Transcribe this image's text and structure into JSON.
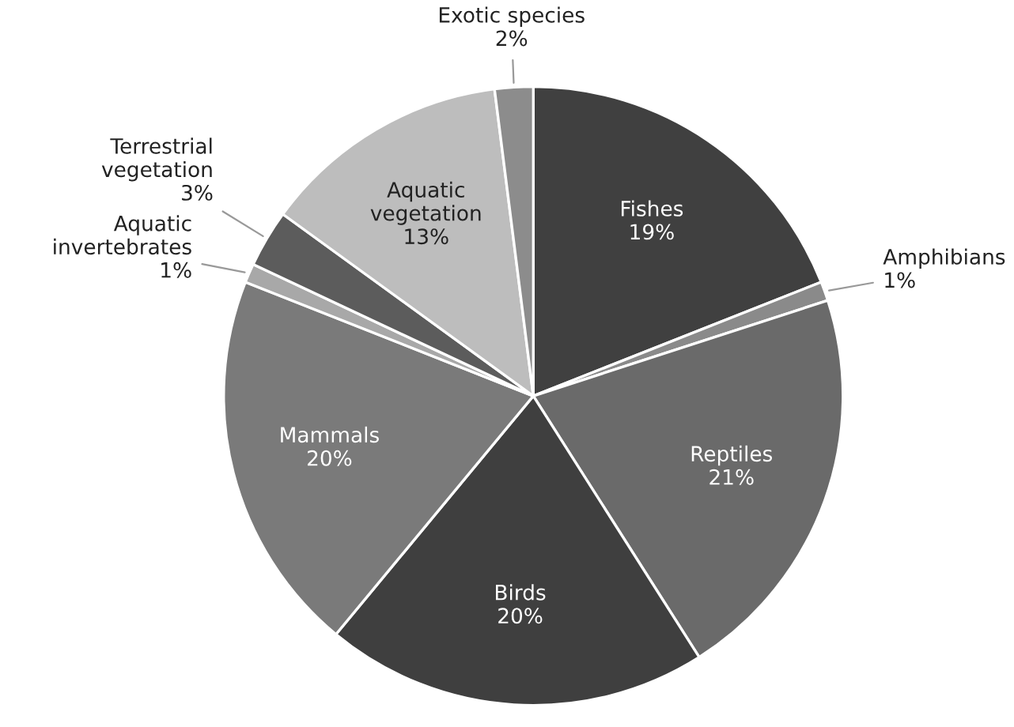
{
  "chart_data": {
    "type": "pie",
    "categories": [
      "Fishes",
      "Amphibians",
      "Reptiles",
      "Birds",
      "Mammals",
      "Aquatic invertebrates",
      "Terrestrial vegetation",
      "Aquatic vegetation",
      "Exotic species"
    ],
    "values": [
      19,
      1,
      21,
      20,
      20,
      1,
      3,
      13,
      2
    ],
    "value_labels": [
      "19%",
      "1%",
      "21%",
      "20%",
      "20%",
      "1%",
      "3%",
      "13%",
      "2%"
    ],
    "colors": [
      "#404040",
      "#8a8a8a",
      "#6a6a6a",
      "#3f3f3f",
      "#7a7a7a",
      "#a8a8a8",
      "#5c5c5c",
      "#bdbdbd",
      "#8c8c8c"
    ]
  }
}
